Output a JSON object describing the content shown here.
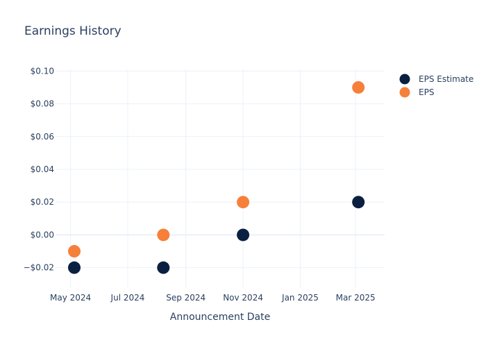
{
  "chart_data": {
    "type": "scatter",
    "title": "Earnings History",
    "xlabel": "Announcement Date",
    "ylabel": "",
    "x_ticks": [
      {
        "date": "2024-05-01",
        "label": "May 2024"
      },
      {
        "date": "2024-07-01",
        "label": "Jul 2024"
      },
      {
        "date": "2024-09-01",
        "label": "Sep 2024"
      },
      {
        "date": "2024-11-01",
        "label": "Nov 2024"
      },
      {
        "date": "2025-01-01",
        "label": "Jan 2025"
      },
      {
        "date": "2025-03-01",
        "label": "Mar 2025"
      }
    ],
    "xlim": [
      "2024-04-15",
      "2025-04-01"
    ],
    "y_ticks": [
      {
        "value": -0.02,
        "label": "−$0.02"
      },
      {
        "value": 0.0,
        "label": "$0.00"
      },
      {
        "value": 0.02,
        "label": "$0.02"
      },
      {
        "value": 0.04,
        "label": "$0.04"
      },
      {
        "value": 0.06,
        "label": "$0.06"
      },
      {
        "value": 0.08,
        "label": "$0.08"
      },
      {
        "value": 0.1,
        "label": "$0.10"
      }
    ],
    "ylim": [
      -0.032,
      0.101
    ],
    "grid": true,
    "legend_position": "top-right",
    "series": [
      {
        "name": "EPS Estimate",
        "color": "#0b1f40",
        "points": [
          {
            "x": "2024-05-05",
            "y": -0.02
          },
          {
            "x": "2024-08-08",
            "y": -0.02
          },
          {
            "x": "2024-11-01",
            "y": 0.0
          },
          {
            "x": "2025-03-04",
            "y": 0.02
          }
        ]
      },
      {
        "name": "EPS",
        "color": "#f6803a",
        "points": [
          {
            "x": "2024-05-05",
            "y": -0.01
          },
          {
            "x": "2024-08-08",
            "y": 0.0
          },
          {
            "x": "2024-11-01",
            "y": 0.02
          },
          {
            "x": "2025-03-04",
            "y": 0.09
          }
        ]
      }
    ]
  }
}
